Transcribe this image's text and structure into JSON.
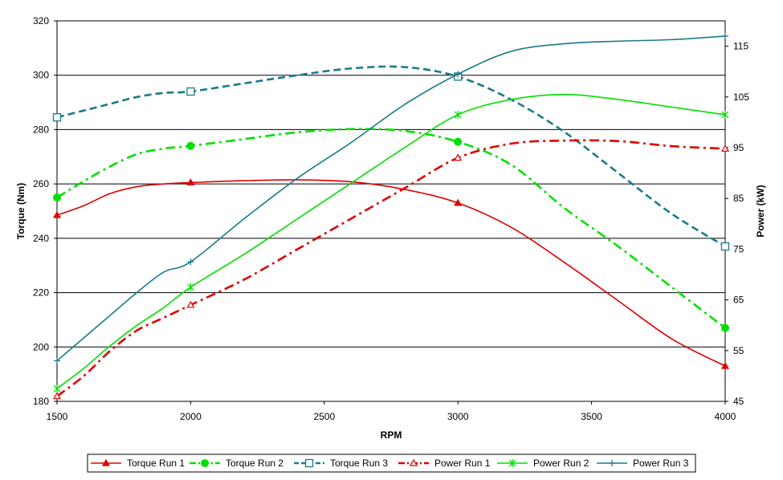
{
  "chart_data": {
    "type": "line",
    "xlabel": "RPM",
    "ylabel": "Torque (Nm)",
    "y2label": "Power (kW)",
    "xlim": [
      1500,
      4000
    ],
    "ylim": [
      180,
      320
    ],
    "y2lim": [
      45,
      120
    ],
    "xticks": [
      1500,
      2000,
      2500,
      3000,
      3500,
      4000
    ],
    "yticks": [
      180,
      200,
      220,
      240,
      260,
      280,
      300,
      320
    ],
    "y2ticks": [
      45,
      55,
      65,
      75,
      85,
      95,
      105,
      115
    ],
    "grid": "horizontal",
    "legend_position": "bottom",
    "series": [
      {
        "name": "Torque Run 1",
        "axis": "left",
        "color": "#e00000",
        "dash": "solid",
        "marker": "triangle-filled",
        "points": [
          [
            1500,
            248.5
          ],
          [
            1600,
            252
          ],
          [
            1700,
            256.5
          ],
          [
            1800,
            259
          ],
          [
            1900,
            260
          ],
          [
            2000,
            260.5
          ],
          [
            2200,
            261.2
          ],
          [
            2400,
            261.5
          ],
          [
            2600,
            260.8
          ],
          [
            2800,
            258
          ],
          [
            3000,
            253
          ],
          [
            3200,
            244
          ],
          [
            3400,
            231
          ],
          [
            3600,
            217
          ],
          [
            3800,
            203
          ],
          [
            4000,
            193
          ]
        ],
        "marker_x": [
          1500,
          2000,
          3000,
          4000
        ]
      },
      {
        "name": "Torque Run 2",
        "axis": "left",
        "color": "#00e000",
        "dash": "dashdot",
        "marker": "circle-filled",
        "points": [
          [
            1500,
            255
          ],
          [
            1600,
            261
          ],
          [
            1700,
            266.5
          ],
          [
            1800,
            271
          ],
          [
            1900,
            273
          ],
          [
            2000,
            274
          ],
          [
            2200,
            276.5
          ],
          [
            2400,
            279
          ],
          [
            2600,
            280.2
          ],
          [
            2800,
            279.5
          ],
          [
            3000,
            275.5
          ],
          [
            3200,
            267
          ],
          [
            3400,
            251
          ],
          [
            3600,
            237
          ],
          [
            3800,
            222
          ],
          [
            4000,
            207
          ]
        ],
        "marker_x": [
          1500,
          2000,
          3000,
          4000
        ]
      },
      {
        "name": "Torque Run 3",
        "axis": "left",
        "color": "#1a7a8a",
        "dash": "dash",
        "marker": "square-open",
        "points": [
          [
            1500,
            284.5
          ],
          [
            1600,
            287
          ],
          [
            1700,
            289.5
          ],
          [
            1800,
            292
          ],
          [
            1900,
            293.5
          ],
          [
            2000,
            294
          ],
          [
            2200,
            297
          ],
          [
            2400,
            300
          ],
          [
            2600,
            302.5
          ],
          [
            2800,
            303
          ],
          [
            3000,
            299.5
          ],
          [
            3200,
            291
          ],
          [
            3400,
            279
          ],
          [
            3600,
            264
          ],
          [
            3800,
            249
          ],
          [
            4000,
            237
          ]
        ],
        "marker_x": [
          1500,
          2000,
          3000,
          4000
        ]
      },
      {
        "name": "Power Run 1",
        "axis": "right",
        "color": "#e00000",
        "dash": "dashdot",
        "marker": "triangle-open",
        "points": [
          [
            1500,
            46
          ],
          [
            1600,
            50
          ],
          [
            1700,
            55
          ],
          [
            1800,
            59
          ],
          [
            1900,
            61.5
          ],
          [
            2000,
            64
          ],
          [
            2200,
            69
          ],
          [
            2400,
            75
          ],
          [
            2600,
            81
          ],
          [
            2800,
            87
          ],
          [
            3000,
            93
          ],
          [
            3200,
            95.8
          ],
          [
            3400,
            96.4
          ],
          [
            3600,
            96.3
          ],
          [
            3800,
            95.3
          ],
          [
            4000,
            94.8
          ]
        ],
        "marker_x": [
          1500,
          2000,
          3000,
          4000
        ]
      },
      {
        "name": "Power Run 2",
        "axis": "right",
        "color": "#00e000",
        "dash": "solid",
        "marker": "star",
        "points": [
          [
            1500,
            47.5
          ],
          [
            1600,
            51.5
          ],
          [
            1700,
            56
          ],
          [
            1800,
            60
          ],
          [
            1900,
            63.5
          ],
          [
            2000,
            67.5
          ],
          [
            2200,
            74
          ],
          [
            2400,
            81
          ],
          [
            2600,
            88
          ],
          [
            2800,
            95
          ],
          [
            3000,
            101.5
          ],
          [
            3200,
            104.5
          ],
          [
            3400,
            105.5
          ],
          [
            3600,
            104.5
          ],
          [
            3800,
            103
          ],
          [
            4000,
            101.5
          ]
        ],
        "marker_x": [
          1500,
          2000,
          3000,
          4000
        ]
      },
      {
        "name": "Power Run 3",
        "axis": "right",
        "color": "#1a7a8a",
        "dash": "solid",
        "marker": "plus",
        "points": [
          [
            1500,
            53
          ],
          [
            1600,
            57.5
          ],
          [
            1700,
            62
          ],
          [
            1800,
            66.5
          ],
          [
            1900,
            70.5
          ],
          [
            2000,
            72.5
          ],
          [
            2200,
            81
          ],
          [
            2400,
            89
          ],
          [
            2600,
            96
          ],
          [
            2800,
            103.5
          ],
          [
            3000,
            109.5
          ],
          [
            3200,
            114
          ],
          [
            3400,
            115.5
          ],
          [
            3600,
            116
          ],
          [
            3800,
            116.3
          ],
          [
            4000,
            117
          ]
        ],
        "marker_x": [
          1500,
          2000,
          3000,
          4000
        ]
      }
    ]
  }
}
